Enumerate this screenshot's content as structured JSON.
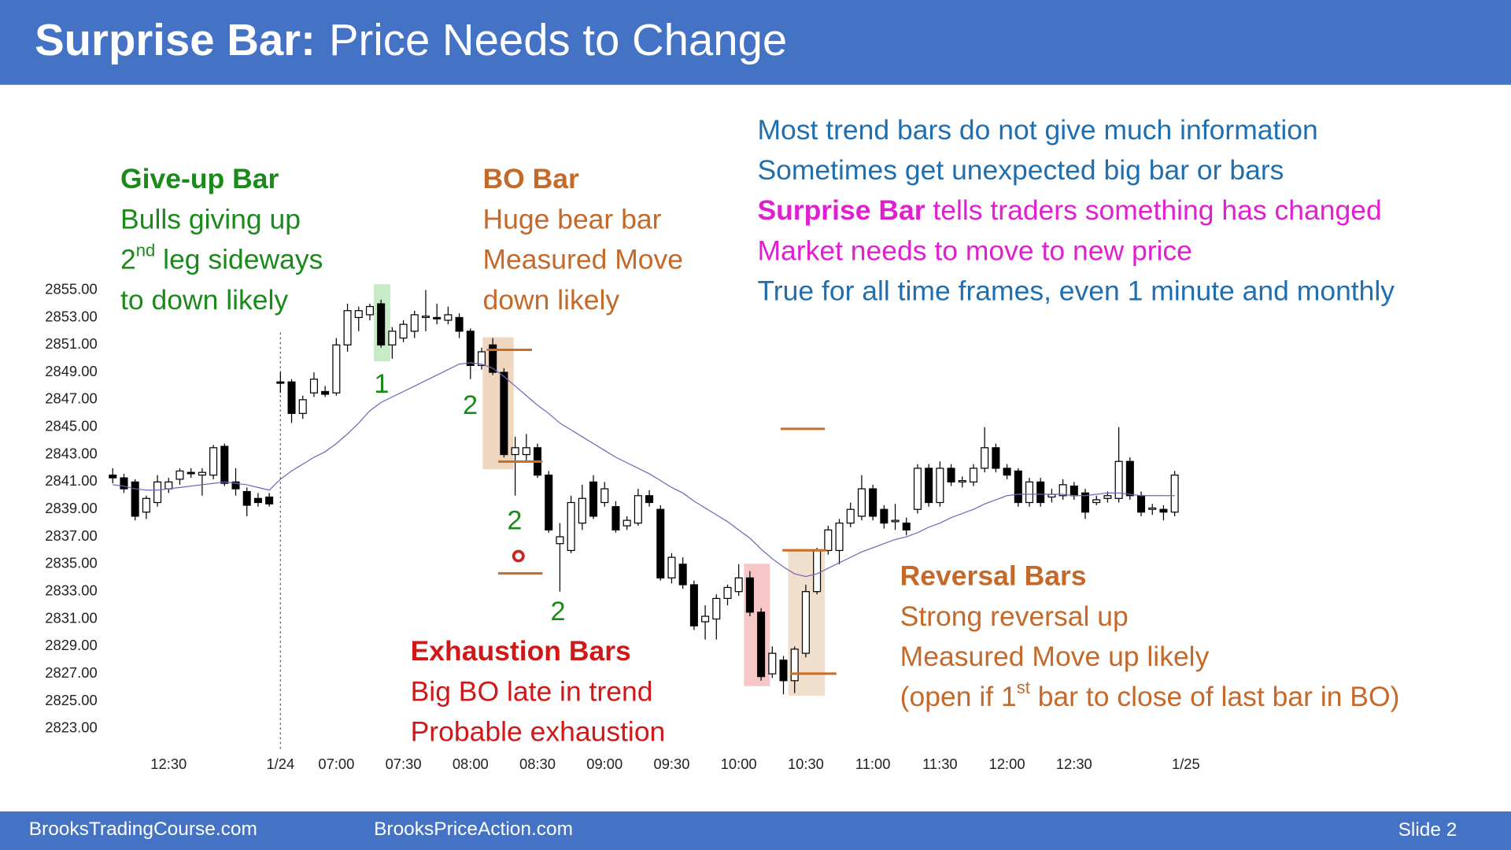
{
  "header": {
    "title_bold": "Surprise Bar:",
    "title_rest": "Price Needs to Change"
  },
  "footer": {
    "left": "BrooksTradingCourse.com",
    "center": "BrooksPriceAction.com",
    "right": "Slide 2"
  },
  "callouts": [
    {
      "lines": [
        {
          "color": "#1b8a1b",
          "segments": [
            {
              "text": "Give-up Bar",
              "bold": true
            }
          ]
        },
        {
          "color": "#1b8a1b",
          "segments": [
            {
              "text": "Bulls giving up"
            }
          ]
        },
        {
          "color": "#1b8a1b",
          "segments": [
            {
              "text": "2"
            },
            {
              "text": "nd",
              "sup": true
            },
            {
              "text": " leg sideways"
            }
          ]
        },
        {
          "color": "#1b8a1b",
          "segments": [
            {
              "text": "to down likely"
            }
          ]
        }
      ]
    },
    {
      "lines": [
        {
          "color": "#c4692a",
          "segments": [
            {
              "text": "BO Bar",
              "bold": true
            }
          ]
        },
        {
          "color": "#c4692a",
          "segments": [
            {
              "text": "Huge bear bar"
            }
          ]
        },
        {
          "color": "#c4692a",
          "segments": [
            {
              "text": "Measured Move"
            }
          ]
        },
        {
          "color": "#c4692a",
          "segments": [
            {
              "text": "down likely"
            }
          ]
        }
      ]
    },
    {
      "lines": [
        {
          "color": "#1f6fb0",
          "segments": [
            {
              "text": "Most trend bars do not give much information"
            }
          ]
        },
        {
          "color": "#1f6fb0",
          "segments": [
            {
              "text": "Sometimes get unexpected big bar or bars"
            }
          ]
        },
        {
          "color": "#e020d0",
          "segments": [
            {
              "text": "Surprise Bar",
              "bold": true
            },
            {
              "text": " tells traders something has changed"
            }
          ]
        },
        {
          "color": "#e020d0",
          "segments": [
            {
              "text": "Market needs to move to new price"
            }
          ]
        },
        {
          "color": "#1f6fb0",
          "segments": [
            {
              "text": "True for all time frames, even 1 minute and monthly"
            }
          ]
        }
      ]
    },
    {
      "lines": [
        {
          "color": "#d01818",
          "segments": [
            {
              "text": "Exhaustion Bars",
              "bold": true
            }
          ]
        },
        {
          "color": "#d01818",
          "segments": [
            {
              "text": "Big BO late in trend"
            }
          ]
        },
        {
          "color": "#d01818",
          "segments": [
            {
              "text": "Probable exhaustion"
            }
          ]
        }
      ]
    },
    {
      "lines": [
        {
          "color": "#c4692a",
          "segments": [
            {
              "text": "Reversal Bars",
              "bold": true
            }
          ]
        },
        {
          "color": "#c4692a",
          "segments": [
            {
              "text": "Strong reversal up"
            }
          ]
        },
        {
          "color": "#c4692a",
          "segments": [
            {
              "text": "Measured Move up likely"
            }
          ]
        },
        {
          "color": "#c4692a",
          "segments": [
            {
              "text": "(open if 1"
            },
            {
              "text": "st",
              "sup": true
            },
            {
              "text": " bar to close of last bar in BO)"
            }
          ]
        }
      ]
    }
  ],
  "bar_labels": [
    {
      "text": "1",
      "color": "#1b8a1b"
    },
    {
      "text": "2",
      "color": "#1b8a1b"
    },
    {
      "text": "2",
      "color": "#1b8a1b"
    },
    {
      "text": "2",
      "color": "#1b8a1b"
    }
  ],
  "chart_data": {
    "type": "candlestick",
    "up_color": "#ffffff",
    "down_color": "#000000",
    "categories": [
      null,
      null,
      null,
      null,
      null,
      "12:30",
      null,
      null,
      null,
      null,
      null,
      null,
      null,
      null,
      null,
      "1/24",
      null,
      null,
      null,
      null,
      "07:00",
      null,
      null,
      null,
      null,
      null,
      "07:30",
      null,
      null,
      null,
      null,
      null,
      "08:00",
      null,
      null,
      null,
      null,
      null,
      "08:30",
      null,
      null,
      null,
      null,
      null,
      "09:00",
      null,
      null,
      null,
      null,
      null,
      "09:30",
      null,
      null,
      null,
      null,
      null,
      "10:00",
      null,
      null,
      null,
      null,
      null,
      "10:30",
      null,
      null,
      null,
      null,
      null,
      "11:00",
      null,
      null,
      null,
      null,
      null,
      "11:30",
      null,
      null,
      null,
      null,
      null,
      "12:00",
      null,
      null,
      null,
      null,
      null,
      "12:30",
      null,
      null,
      null,
      null,
      null,
      null,
      null,
      null,
      null,
      "1/25"
    ],
    "open": [
      2841.5,
      2841.3,
      2841,
      2838.8,
      2839.5,
      2840.5,
      2841.2,
      2841.7,
      2841.5,
      2841.5,
      2843.6,
      2841,
      2840.3,
      2839.8,
      2839.9,
      2848.3,
      2848.3,
      2846,
      2847.5,
      2847.6,
      2847.5,
      2851,
      2853,
      2853.2,
      2854,
      2851,
      2851.5,
      2852,
      2853,
      2853,
      2852.8,
      2853,
      2852,
      2849.5,
      2851,
      2849,
      2843,
      2843,
      2843.5,
      2841.5,
      2836.5,
      2836,
      2838,
      2841,
      2839.5,
      2839.2,
      2837.8,
      2838,
      2840,
      2839,
      2834,
      2835,
      2833.5,
      2830.8,
      2831,
      2832.5,
      2833,
      2834,
      2831.5,
      2827,
      2828,
      2826.5,
      2828.5,
      2833,
      2836,
      2836,
      2838,
      2838.5,
      2840.5,
      2839,
      2838.1,
      2838,
      2839,
      2842,
      2839.5,
      2842,
      2841,
      2841,
      2842,
      2843.5,
      2842,
      2841.8,
      2839.5,
      2841,
      2839.9,
      2840,
      2840.7,
      2840.2,
      2839.5,
      2839.8,
      2839.8,
      2842.5,
      2840,
      2839,
      2839,
      2838.8,
      null
    ],
    "high": [
      2842,
      2841.6,
      2841.2,
      2840,
      2841.5,
      2841.3,
      2842,
      2842,
      2842,
      2843.7,
      2843.8,
      2842,
      2840.6,
      2840.2,
      2840.2,
      2849,
      2848.5,
      2847.3,
      2849,
      2848,
      2851.5,
      2854,
      2853.8,
      2854,
      2854.3,
      2852.3,
      2852.8,
      2853.5,
      2855,
      2854,
      2853.8,
      2853.3,
      2852.2,
      2850.8,
      2851.5,
      2849.3,
      2844.3,
      2844.5,
      2843.8,
      2841.8,
      2838,
      2840,
      2840.8,
      2841.5,
      2841,
      2839.6,
      2838.5,
      2840.5,
      2840.4,
      2839.3,
      2835.8,
      2835.5,
      2833.8,
      2832,
      2832.8,
      2833.5,
      2835,
      2834.5,
      2831.8,
      2829,
      2828.3,
      2829,
      2833.5,
      2836.2,
      2837.8,
      2838.3,
      2839.5,
      2841.5,
      2840.8,
      2839.3,
      2839.4,
      2838.4,
      2842.3,
      2842.3,
      2842.5,
      2842.3,
      2841.4,
      2842.3,
      2845,
      2843.8,
      2842.3,
      2842,
      2841.3,
      2841.3,
      2840.5,
      2841.2,
      2841,
      2840.5,
      2840,
      2840.3,
      2845,
      2842.8,
      2840.3,
      2839.4,
      2839.3,
      2841.8,
      null
    ],
    "low": [
      2840.9,
      2840.2,
      2838.2,
      2838.3,
      2839.2,
      2840.2,
      2840.8,
      2841.3,
      2840,
      2841.2,
      2840.7,
      2840,
      2838.5,
      2839.2,
      2839.2,
      2847.5,
      2845.3,
      2845.6,
      2847.2,
      2847.2,
      2847.3,
      2850.5,
      2852,
      2852.8,
      2850.8,
      2850,
      2851.2,
      2851.5,
      2852,
      2852.5,
      2852.5,
      2851.5,
      2848.5,
      2849.2,
      2848.8,
      2842.8,
      2840,
      2842.5,
      2841.3,
      2837.3,
      2833,
      2835.8,
      2837.5,
      2838.3,
      2839.2,
      2837.3,
      2837.5,
      2837.8,
      2839.2,
      2833.8,
      2833.6,
      2833.2,
      2830.2,
      2829.5,
      2829.5,
      2832,
      2832.7,
      2831.2,
      2826.5,
      2826.7,
      2825.5,
      2825.6,
      2828.2,
      2832.8,
      2835.7,
      2835,
      2837.7,
      2838.2,
      2838.2,
      2837.6,
      2837.5,
      2837.1,
      2838.7,
      2839.2,
      2839.2,
      2840.7,
      2840.6,
      2840.7,
      2841.7,
      2841.7,
      2841.2,
      2839.2,
      2839.2,
      2839.2,
      2839.5,
      2839.7,
      2839.7,
      2838.3,
      2839.3,
      2839.5,
      2839.5,
      2839.7,
      2838.5,
      2838.6,
      2838.2,
      2838.5,
      null
    ],
    "close": [
      2841.3,
      2840.5,
      2838.5,
      2839.8,
      2841,
      2841,
      2841.8,
      2841.6,
      2841.7,
      2843.5,
      2840.9,
      2840.5,
      2839.3,
      2839.5,
      2839.4,
      2848.2,
      2846,
      2847,
      2848.5,
      2847.4,
      2851,
      2853.5,
      2853.5,
      2853.8,
      2851,
      2852,
      2852.5,
      2853.2,
      2853.1,
      2852.9,
      2853.2,
      2852,
      2849.5,
      2850.5,
      2849,
      2843,
      2843.5,
      2843.5,
      2841.5,
      2837.5,
      2837,
      2839.5,
      2839.8,
      2838.5,
      2840.5,
      2837.5,
      2838.2,
      2840,
      2839.5,
      2834,
      2835.5,
      2833.5,
      2830.5,
      2831.2,
      2832.5,
      2833.3,
      2834,
      2831.5,
      2826.8,
      2828.5,
      2826.5,
      2828.8,
      2833,
      2836,
      2837.5,
      2838,
      2839,
      2840.5,
      2838.5,
      2838,
      2838.2,
      2837.5,
      2842,
      2839.5,
      2842,
      2841,
      2841.1,
      2842,
      2843.5,
      2842,
      2841.5,
      2839.5,
      2841,
      2839.5,
      2840.1,
      2840.8,
      2840,
      2838.8,
      2839.7,
      2840,
      2842.5,
      2840,
      2838.8,
      2839.1,
      2838.8,
      2841.5,
      null
    ],
    "ma": {
      "color": "#6a6ab8",
      "values": [
        2840.8,
        2840.7,
        2840.5,
        2840.4,
        2840.4,
        2840.5,
        2840.6,
        2840.7,
        2840.8,
        2840.9,
        2841,
        2840.9,
        2840.8,
        2840.6,
        2840.4,
        2841.2,
        2841.8,
        2842.3,
        2842.8,
        2843.2,
        2843.8,
        2844.5,
        2845.3,
        2846.2,
        2846.8,
        2847.2,
        2847.6,
        2848,
        2848.4,
        2848.8,
        2849.2,
        2849.6,
        2849.7,
        2849.6,
        2849.3,
        2848.7,
        2848,
        2847.3,
        2846.6,
        2846,
        2845.3,
        2844.8,
        2844.3,
        2843.8,
        2843.3,
        2842.8,
        2842.4,
        2842,
        2841.6,
        2841.1,
        2840.6,
        2840.2,
        2839.6,
        2839.1,
        2838.6,
        2838.1,
        2837.5,
        2836.9,
        2836.1,
        2835.4,
        2834.8,
        2834.3,
        2834.1,
        2834.3,
        2834.7,
        2835.1,
        2835.5,
        2835.9,
        2836.2,
        2836.5,
        2836.8,
        2837,
        2837.3,
        2837.7,
        2838,
        2838.4,
        2838.7,
        2839,
        2839.4,
        2839.7,
        2840,
        2840.1,
        2840.1,
        2840.1,
        2840.1,
        2840.1,
        2840,
        2840,
        2840.1,
        2840.2,
        2840.2,
        2840.1,
        2840,
        2840,
        2840,
        2840,
        null
      ]
    },
    "ylim": [
      2822,
      2856
    ],
    "yticks": [
      {
        "value": 2823,
        "label": "2823.00"
      },
      {
        "value": 2825,
        "label": "2825.00"
      },
      {
        "value": 2827,
        "label": "2827.00"
      },
      {
        "value": 2829,
        "label": "2829.00"
      },
      {
        "value": 2831,
        "label": "2831.00"
      },
      {
        "value": 2833,
        "label": "2833.00"
      },
      {
        "value": 2835,
        "label": "2835.00"
      },
      {
        "value": 2837,
        "label": "2837.00"
      },
      {
        "value": 2839,
        "label": "2839.00"
      },
      {
        "value": 2841,
        "label": "2841.00"
      },
      {
        "value": 2843,
        "label": "2843.00"
      },
      {
        "value": 2845,
        "label": "2845.00"
      },
      {
        "value": 2847,
        "label": "2847.00"
      },
      {
        "value": 2849,
        "label": "2849.00"
      },
      {
        "value": 2851,
        "label": "2851.00"
      },
      {
        "value": 2853,
        "label": "2853.00"
      },
      {
        "value": 2855,
        "label": "2855.00"
      }
    ]
  }
}
